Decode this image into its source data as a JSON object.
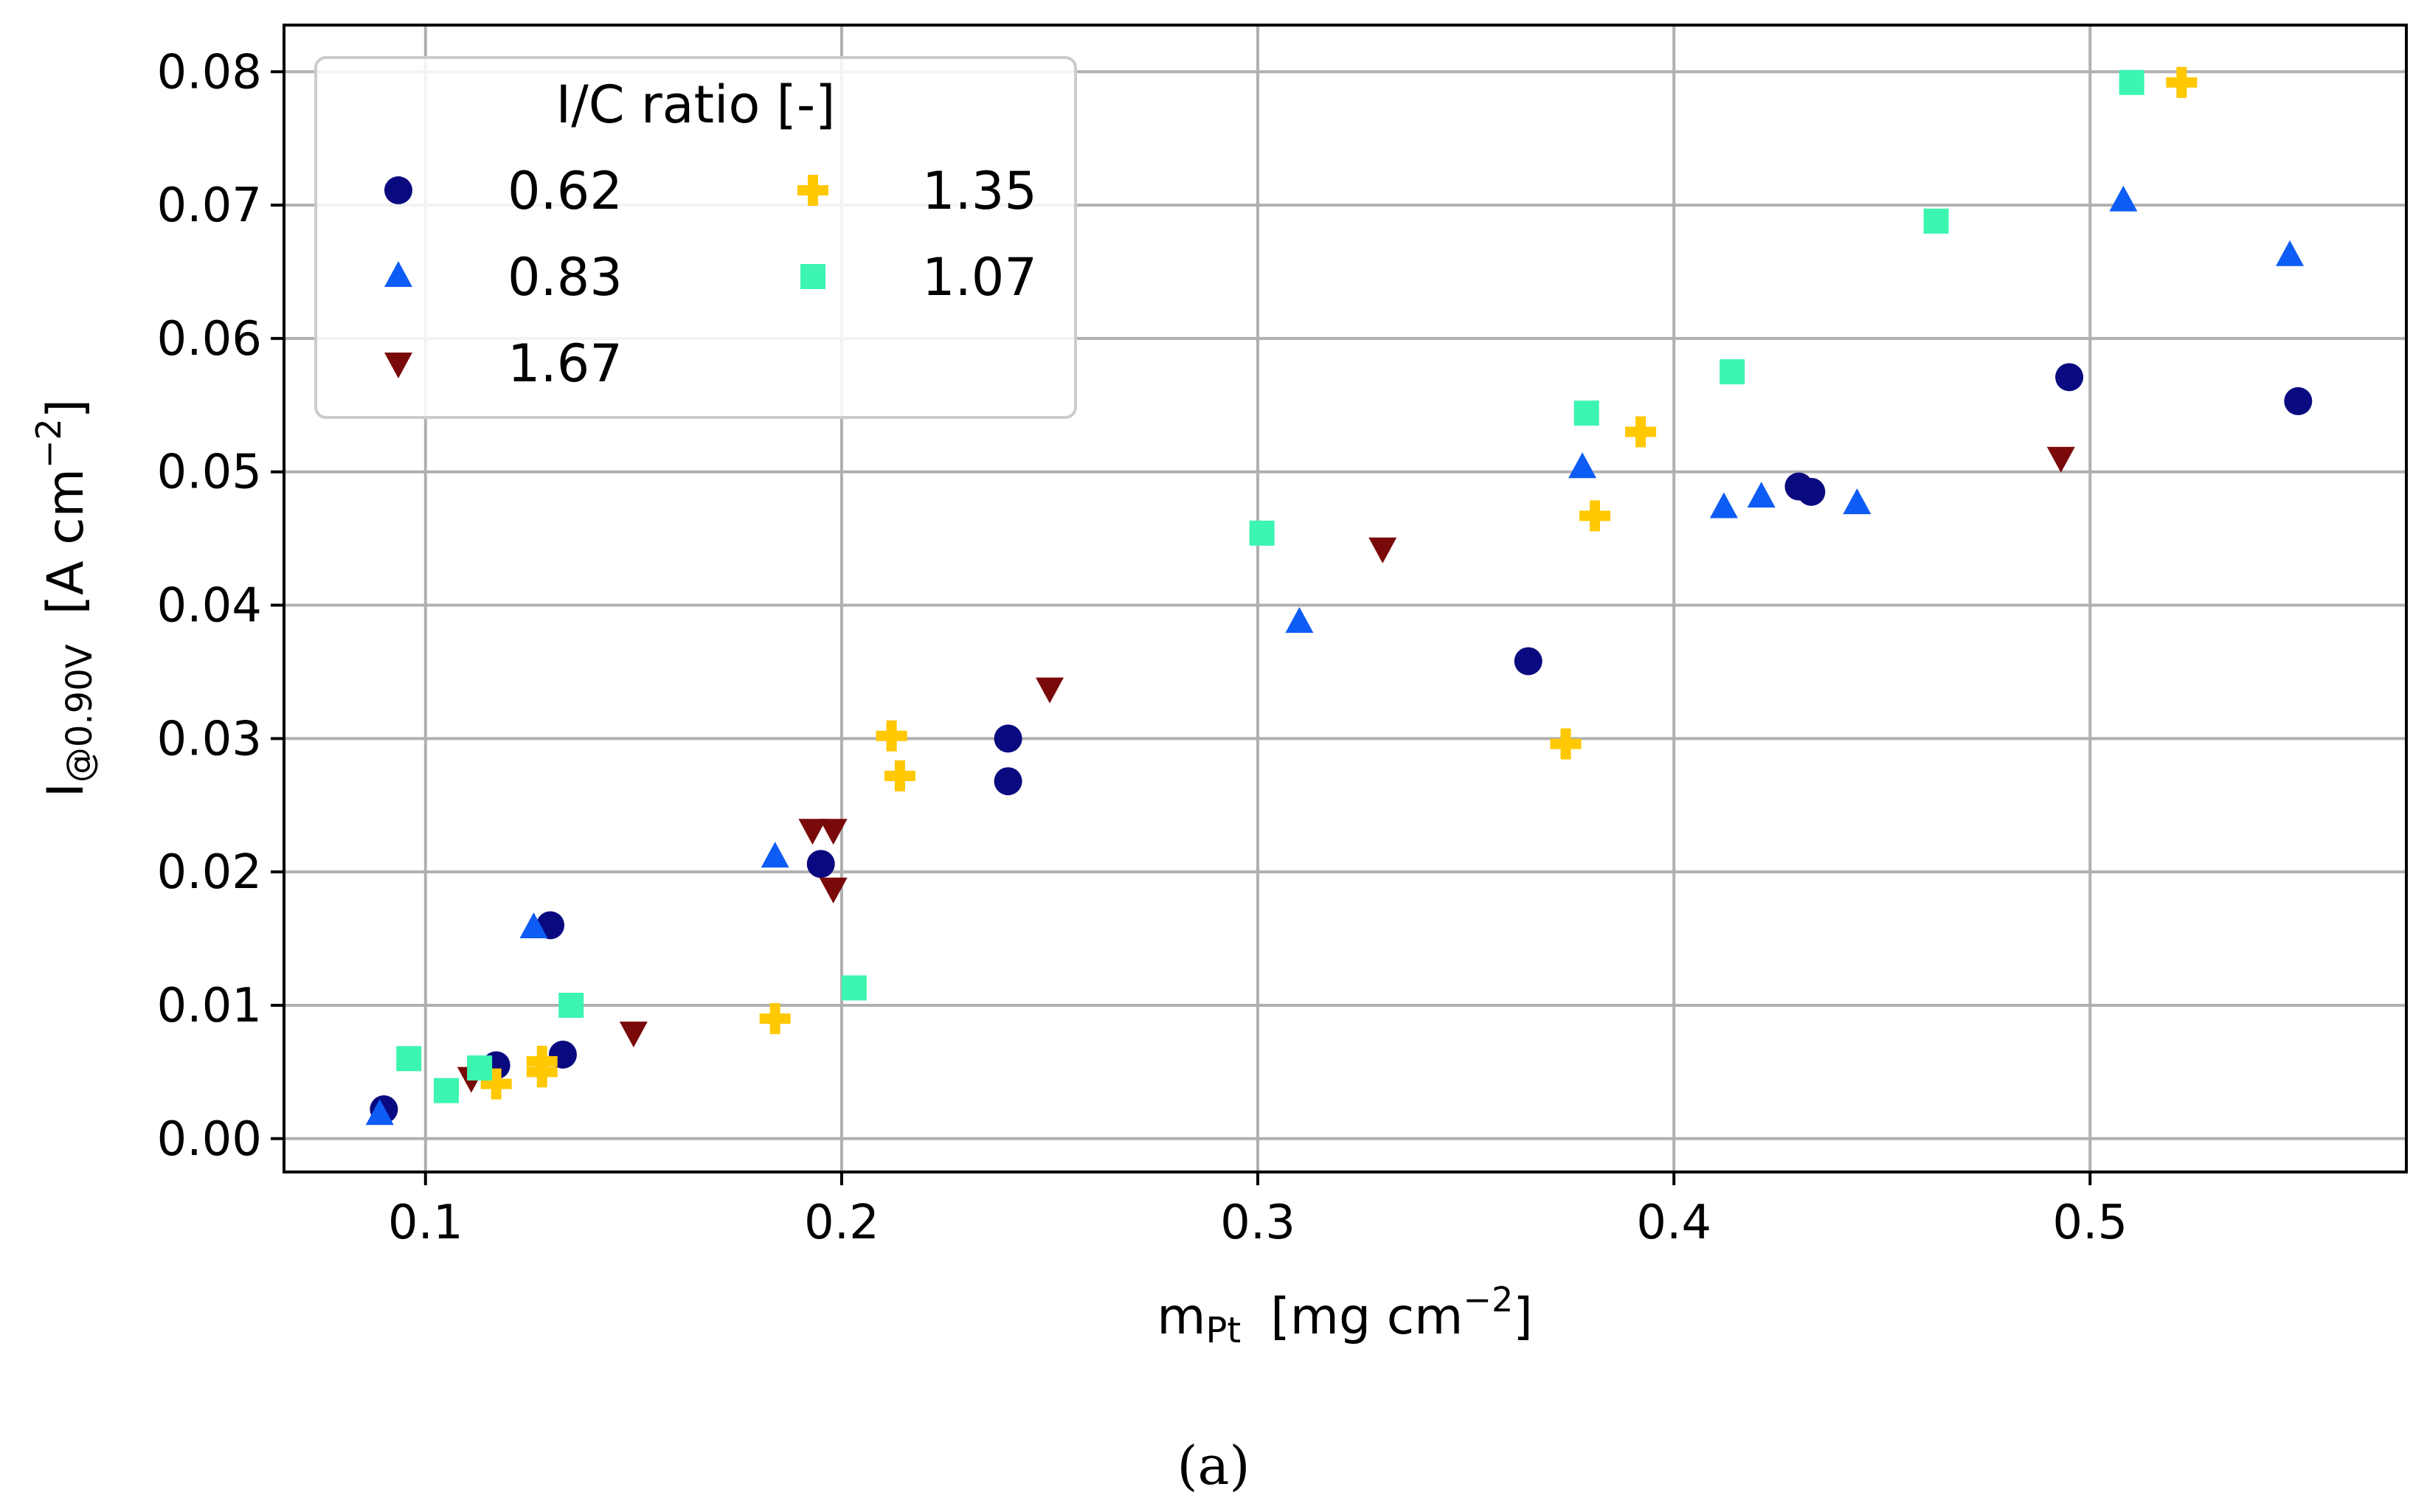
{
  "chart_data": {
    "type": "scatter",
    "xlabel_main": "m",
    "xlabel_sub": "Pt",
    "xlabel_units": "[mg cm",
    "xlabel_exp": "−2",
    "xlabel_close": "]",
    "ylabel_main": "I",
    "ylabel_sub": "@0.90V",
    "ylabel_units": "[A cm",
    "ylabel_exp": "−2",
    "ylabel_close": "]",
    "xlim": [
      0.066,
      0.576
    ],
    "ylim": [
      -0.0025,
      0.0835
    ],
    "xticks": [
      0.1,
      0.2,
      0.3,
      0.4,
      0.5
    ],
    "xtick_labels": [
      "0.1",
      "0.2",
      "0.3",
      "0.4",
      "0.5"
    ],
    "yticks": [
      0.0,
      0.01,
      0.02,
      0.03,
      0.04,
      0.05,
      0.06,
      0.07,
      0.08
    ],
    "ytick_labels": [
      "0.00",
      "0.01",
      "0.02",
      "0.03",
      "0.04",
      "0.05",
      "0.06",
      "0.07",
      "0.08"
    ],
    "grid": true,
    "legend": {
      "title": "I/C ratio [-]",
      "position": "top-left",
      "columns": 2
    },
    "caption": "(a)",
    "series": [
      {
        "name": "0.62",
        "marker": "circle",
        "color": "#0a0a80",
        "points": [
          [
            0.09,
            0.0022
          ],
          [
            0.117,
            0.0055
          ],
          [
            0.13,
            0.016
          ],
          [
            0.133,
            0.0063
          ],
          [
            0.195,
            0.0206
          ],
          [
            0.24,
            0.03
          ],
          [
            0.24,
            0.0268
          ],
          [
            0.365,
            0.0358
          ],
          [
            0.43,
            0.0489
          ],
          [
            0.433,
            0.0485
          ],
          [
            0.495,
            0.0571
          ],
          [
            0.55,
            0.0553
          ]
        ]
      },
      {
        "name": "0.83",
        "marker": "triangle-up",
        "color": "#0d5cf5",
        "points": [
          [
            0.089,
            0.0018
          ],
          [
            0.126,
            0.0158
          ],
          [
            0.184,
            0.0211
          ],
          [
            0.31,
            0.0387
          ],
          [
            0.378,
            0.0503
          ],
          [
            0.412,
            0.0473
          ],
          [
            0.421,
            0.0481
          ],
          [
            0.444,
            0.0476
          ],
          [
            0.508,
            0.0703
          ],
          [
            0.548,
            0.0662
          ]
        ]
      },
      {
        "name": "1.67",
        "marker": "triangle-down",
        "color": "#7a0a0a",
        "points": [
          [
            0.111,
            0.0046
          ],
          [
            0.15,
            0.008
          ],
          [
            0.193,
            0.0232
          ],
          [
            0.198,
            0.0232
          ],
          [
            0.198,
            0.0188
          ],
          [
            0.25,
            0.0338
          ],
          [
            0.33,
            0.0443
          ],
          [
            0.493,
            0.0511
          ]
        ]
      },
      {
        "name": "1.35",
        "marker": "plus",
        "color": "#ffc800",
        "points": [
          [
            0.117,
            0.0041
          ],
          [
            0.128,
            0.0058
          ],
          [
            0.128,
            0.005
          ],
          [
            0.184,
            0.009
          ],
          [
            0.212,
            0.0302
          ],
          [
            0.214,
            0.0272
          ],
          [
            0.374,
            0.0296
          ],
          [
            0.381,
            0.0467
          ],
          [
            0.392,
            0.053
          ],
          [
            0.522,
            0.0792
          ]
        ]
      },
      {
        "name": "1.07",
        "marker": "square",
        "color": "#3cf5b0",
        "points": [
          [
            0.096,
            0.006
          ],
          [
            0.105,
            0.0036
          ],
          [
            0.113,
            0.0053
          ],
          [
            0.135,
            0.01
          ],
          [
            0.203,
            0.0113
          ],
          [
            0.301,
            0.0454
          ],
          [
            0.379,
            0.0544
          ],
          [
            0.414,
            0.0575
          ],
          [
            0.463,
            0.0688
          ],
          [
            0.51,
            0.0792
          ]
        ]
      }
    ]
  }
}
